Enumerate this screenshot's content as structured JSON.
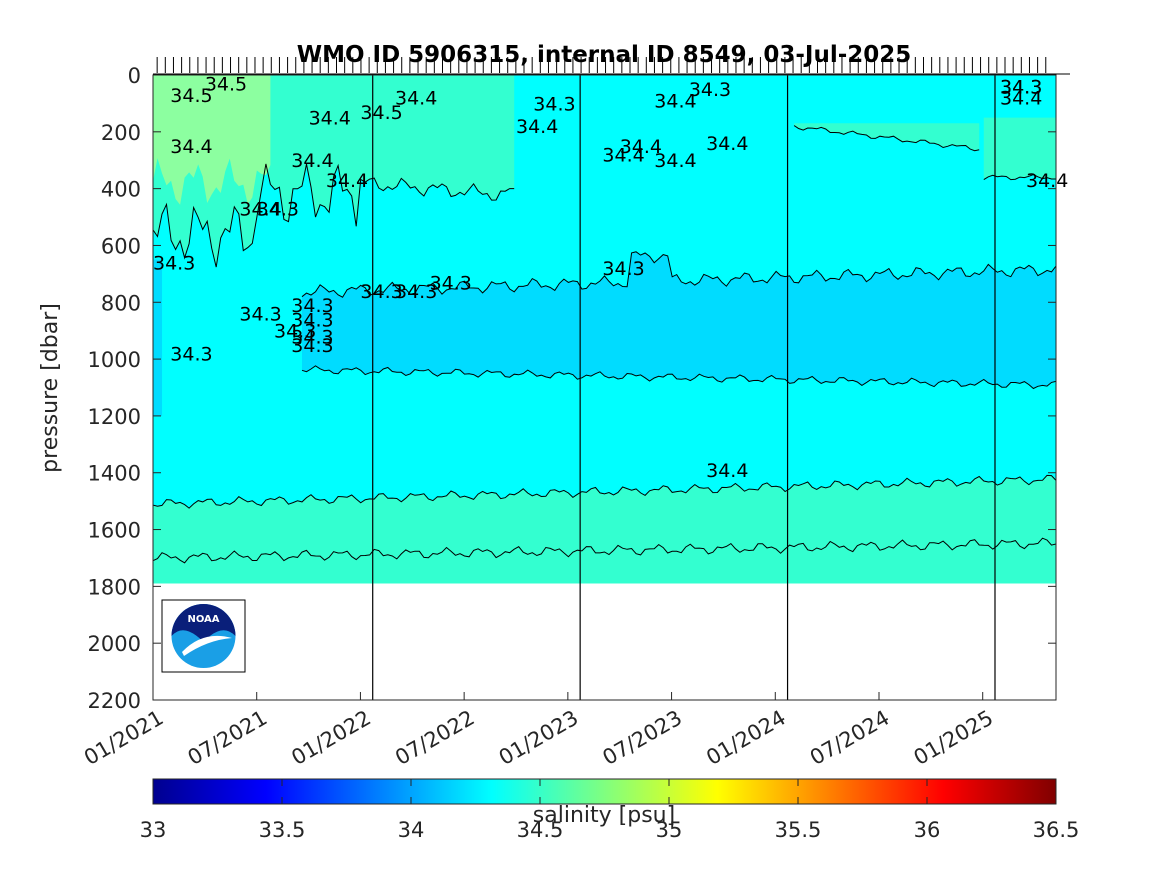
{
  "chart_data": {
    "type": "heatmap",
    "title": "WMO ID 5906315, internal ID 8549, 03-Jul-2025",
    "ylabel": "pressure [dbar]",
    "xlabel": "",
    "y_axis": {
      "range": [
        0,
        2200
      ],
      "reversed": true,
      "ticks": [
        "0",
        "200",
        "400",
        "600",
        "800",
        "1000",
        "1200",
        "1400",
        "1600",
        "1800",
        "2000",
        "2200"
      ]
    },
    "x_axis": {
      "range": [
        "2021-01",
        "2025-05"
      ],
      "ticks": [
        "01/2021",
        "07/2021",
        "01/2022",
        "07/2022",
        "01/2023",
        "07/2023",
        "01/2024",
        "07/2024",
        "01/2025"
      ]
    },
    "colorbar": {
      "label": "salinity [psu]",
      "range": [
        33,
        36.5
      ],
      "ticks": [
        "33",
        "33.5",
        "34",
        "34.5",
        "35",
        "35.5",
        "36",
        "36.5"
      ],
      "colormap": "jet"
    },
    "bands": [
      {
        "range": "34.2-34.3",
        "color": "#00dcff"
      },
      {
        "range": "34.3-34.4",
        "color": "#00ffff"
      },
      {
        "range": "34.4-34.5",
        "color": "#33ffd0"
      },
      {
        "range": ">34.5",
        "color": "#8cffa0"
      }
    ],
    "year_lines": [
      "2022-01",
      "2023-01",
      "2024-01",
      "2025-01"
    ],
    "data_max_pressure": 1790,
    "contour_labels": [
      {
        "text": "34.5",
        "x": "2021-03",
        "y": 30
      },
      {
        "text": "34.5",
        "x": "2021-01",
        "y": 70
      },
      {
        "text": "34.4",
        "x": "2021-01",
        "y": 250
      },
      {
        "text": "34.4",
        "x": "2021-09",
        "y": 150
      },
      {
        "text": "34.5",
        "x": "2021-12",
        "y": 130
      },
      {
        "text": "34.4",
        "x": "2022-02",
        "y": 80
      },
      {
        "text": "34.4",
        "x": "2021-08",
        "y": 300
      },
      {
        "text": "34.4",
        "x": "2021-10",
        "y": 370
      },
      {
        "text": "34.4",
        "x": "2021-05",
        "y": 470
      },
      {
        "text": "34.3",
        "x": "2021-06",
        "y": 470
      },
      {
        "text": "34.3",
        "x": "2022-10",
        "y": 100
      },
      {
        "text": "34.4",
        "x": "2022-09",
        "y": 180
      },
      {
        "text": "34.4",
        "x": "2023-05",
        "y": 90
      },
      {
        "text": "34.3",
        "x": "2023-07",
        "y": 50
      },
      {
        "text": "34.4",
        "x": "2023-08",
        "y": 240
      },
      {
        "text": "34.4",
        "x": "2023-03",
        "y": 250
      },
      {
        "text": "34.4",
        "x": "2023-02",
        "y": 280
      },
      {
        "text": "34.4",
        "x": "2023-05",
        "y": 300
      },
      {
        "text": "34.3",
        "x": "2021-00",
        "y": 660
      },
      {
        "text": "34.3",
        "x": "2023-02",
        "y": 680
      },
      {
        "text": "34.3",
        "x": "2022-04",
        "y": 730
      },
      {
        "text": "34.3",
        "x": "2022-00",
        "y": 760
      },
      {
        "text": "34.3",
        "x": "2022-02",
        "y": 760
      },
      {
        "text": "34.3",
        "x": "2021-05",
        "y": 840
      },
      {
        "text": "34.3",
        "x": "2021-08",
        "y": 810
      },
      {
        "text": "34.3",
        "x": "2021-08",
        "y": 860
      },
      {
        "text": "34.3",
        "x": "2021-07",
        "y": 900
      },
      {
        "text": "34.3",
        "x": "2021-08",
        "y": 920
      },
      {
        "text": "34.3",
        "x": "2021-08",
        "y": 950
      },
      {
        "text": "34.3",
        "x": "2021-01",
        "y": 980
      },
      {
        "text": "34.4",
        "x": "2023-08",
        "y": 1390
      },
      {
        "text": "34.4",
        "x": "2025-01",
        "y": 80
      },
      {
        "text": "34.3",
        "x": "2025-01",
        "y": 40
      },
      {
        "text": "34.3",
        "x": "2025-01",
        "y": 40
      },
      {
        "text": "34.4",
        "x": "2025-03",
        "y": 370
      }
    ],
    "logo": "noaa-logo"
  }
}
